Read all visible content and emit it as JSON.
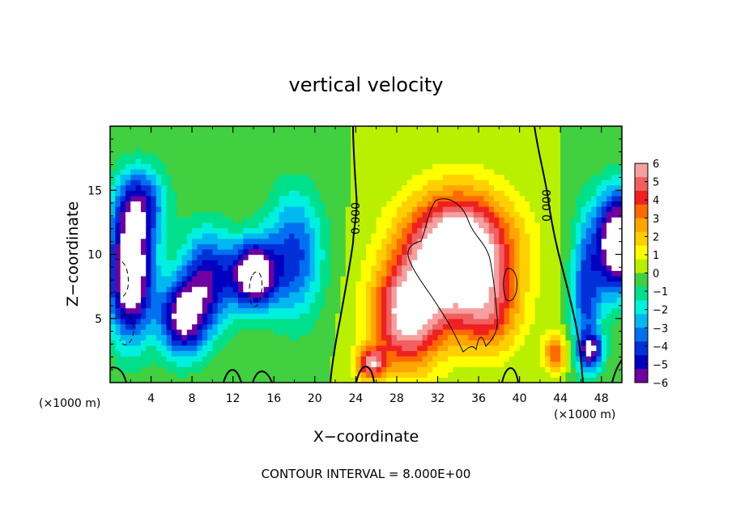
{
  "chart_data": {
    "type": "heatmap",
    "title": "vertical velocity",
    "xlabel": "X−coordinate",
    "ylabel": "Z−coordinate",
    "x_unit_left": "(×1000 m)",
    "x_unit_right": "(×1000 m)",
    "xlim": [
      0,
      50
    ],
    "ylim": [
      0,
      20
    ],
    "x_ticks": [
      "4",
      "8",
      "12",
      "16",
      "20",
      "24",
      "28",
      "32",
      "36",
      "40",
      "44",
      "48"
    ],
    "y_ticks": [
      "5",
      "10",
      "15"
    ],
    "colorbar": {
      "min": -6,
      "max": 6,
      "ticks": [
        "6",
        "5",
        "4",
        "3",
        "2",
        "1",
        "0",
        "−1",
        "−2",
        "−3",
        "−4",
        "−5",
        "−6"
      ],
      "colors": [
        "#f5a0a0",
        "#f06060",
        "#f02020",
        "#ff6a00",
        "#ffa500",
        "#ffd000",
        "#ffff00",
        "#b8f000",
        "#40d040",
        "#00e08a",
        "#00f0e0",
        "#00b8f0",
        "#0070f0",
        "#0030d8",
        "#0000c0",
        "#7000a0"
      ]
    },
    "contour_labels": [
      "0.000",
      "0.000"
    ],
    "features": [
      {
        "kind": "updraft",
        "x": 34,
        "z": 10,
        "amp": 9,
        "sx": 5.2,
        "sz": 4.6
      },
      {
        "kind": "updraft",
        "x": 29,
        "z": 5,
        "amp": 6,
        "sx": 3.5,
        "sz": 4
      },
      {
        "kind": "updraft",
        "x": 25.5,
        "z": 1.5,
        "amp": 5,
        "sx": 1.4,
        "sz": 1.2
      },
      {
        "kind": "updraft",
        "x": 37,
        "z": 5,
        "amp": 3,
        "sx": 3,
        "sz": 3
      },
      {
        "kind": "updraft",
        "x": 43.5,
        "z": 2.3,
        "amp": 3.5,
        "sx": 1.2,
        "sz": 1.5
      },
      {
        "kind": "downdraft",
        "x": 14,
        "z": 8.5,
        "amp": -7.5,
        "sx": 2.2,
        "sz": 2.6
      },
      {
        "kind": "downdraft",
        "x": 2,
        "z": 8.5,
        "amp": -8,
        "sx": 2.2,
        "sz": 5
      },
      {
        "kind": "downdraft",
        "x": 7,
        "z": 5,
        "amp": -6,
        "sx": 2.2,
        "sz": 3
      },
      {
        "kind": "downdraft",
        "x": 9.5,
        "z": 8,
        "amp": -5,
        "sx": 2.5,
        "sz": 4
      },
      {
        "kind": "downdraft",
        "x": 18,
        "z": 10,
        "amp": -4,
        "sx": 2.8,
        "sz": 5
      },
      {
        "kind": "downdraft",
        "x": 3,
        "z": 14,
        "amp": -4,
        "sx": 2.5,
        "sz": 3
      },
      {
        "kind": "downdraft",
        "x": 49.5,
        "z": 11,
        "amp": -8,
        "sx": 2,
        "sz": 4
      },
      {
        "kind": "downdraft",
        "x": 46.5,
        "z": 7,
        "amp": -4,
        "sx": 1.5,
        "sz": 6
      },
      {
        "kind": "downdraft",
        "x": 47,
        "z": 2.5,
        "amp": -4.5,
        "sx": 1.2,
        "sz": 1.3
      }
    ],
    "footer": "CONTOUR INTERVAL = 8.000E+00"
  }
}
